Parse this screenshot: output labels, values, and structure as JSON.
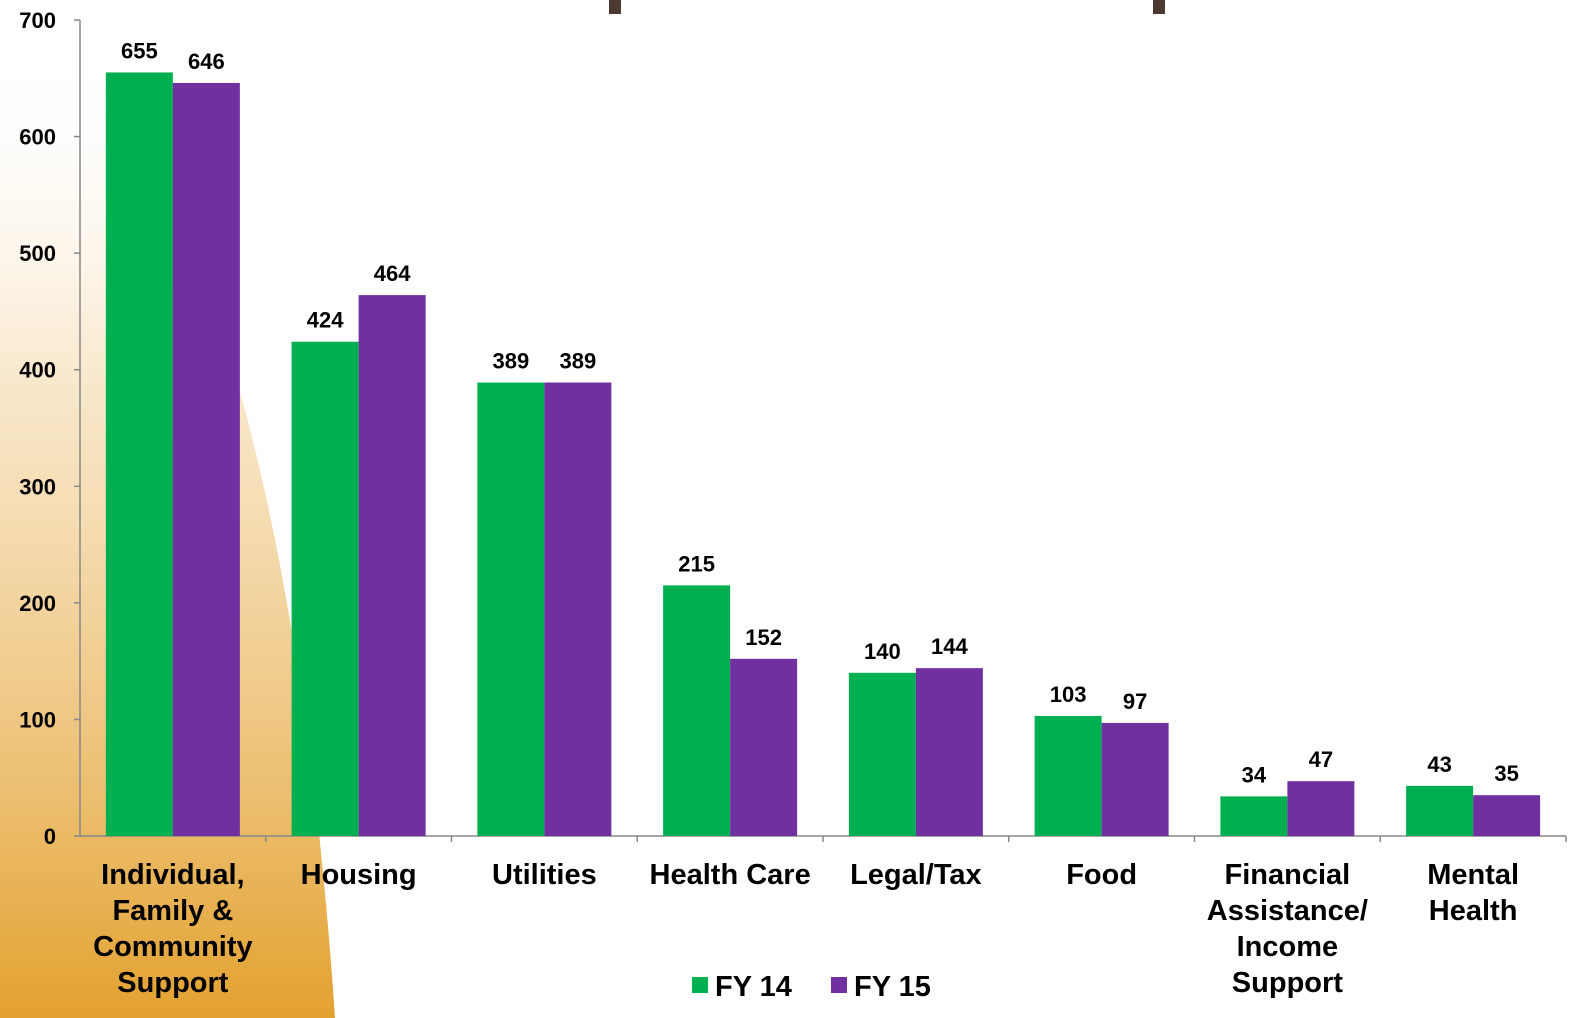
{
  "chart_data": {
    "type": "bar",
    "title": "",
    "xlabel": "",
    "ylabel": "",
    "ylim": [
      0,
      700
    ],
    "yticks": [
      0,
      100,
      200,
      300,
      400,
      500,
      600,
      700
    ],
    "grid": false,
    "legend_position": "bottom-center",
    "categories": [
      [
        "Individual,",
        "Family &",
        "Community",
        "Support"
      ],
      [
        "Housing"
      ],
      [
        "Utilities"
      ],
      [
        "Health Care"
      ],
      [
        "Legal/Tax"
      ],
      [
        "Food"
      ],
      [
        "Financial",
        "Assistance/",
        "Income",
        "Support"
      ],
      [
        "Mental",
        "Health"
      ]
    ],
    "series": [
      {
        "name": "FY 14",
        "color": "#00b050",
        "values": [
          655,
          424,
          389,
          215,
          140,
          103,
          34,
          43
        ]
      },
      {
        "name": "FY 15",
        "color": "#7030a0",
        "values": [
          646,
          464,
          389,
          152,
          144,
          97,
          47,
          35
        ]
      }
    ]
  },
  "colors": {
    "background_shape": "#e8a93e",
    "slide_accent": "#4a3a30",
    "axis": "#888888"
  }
}
